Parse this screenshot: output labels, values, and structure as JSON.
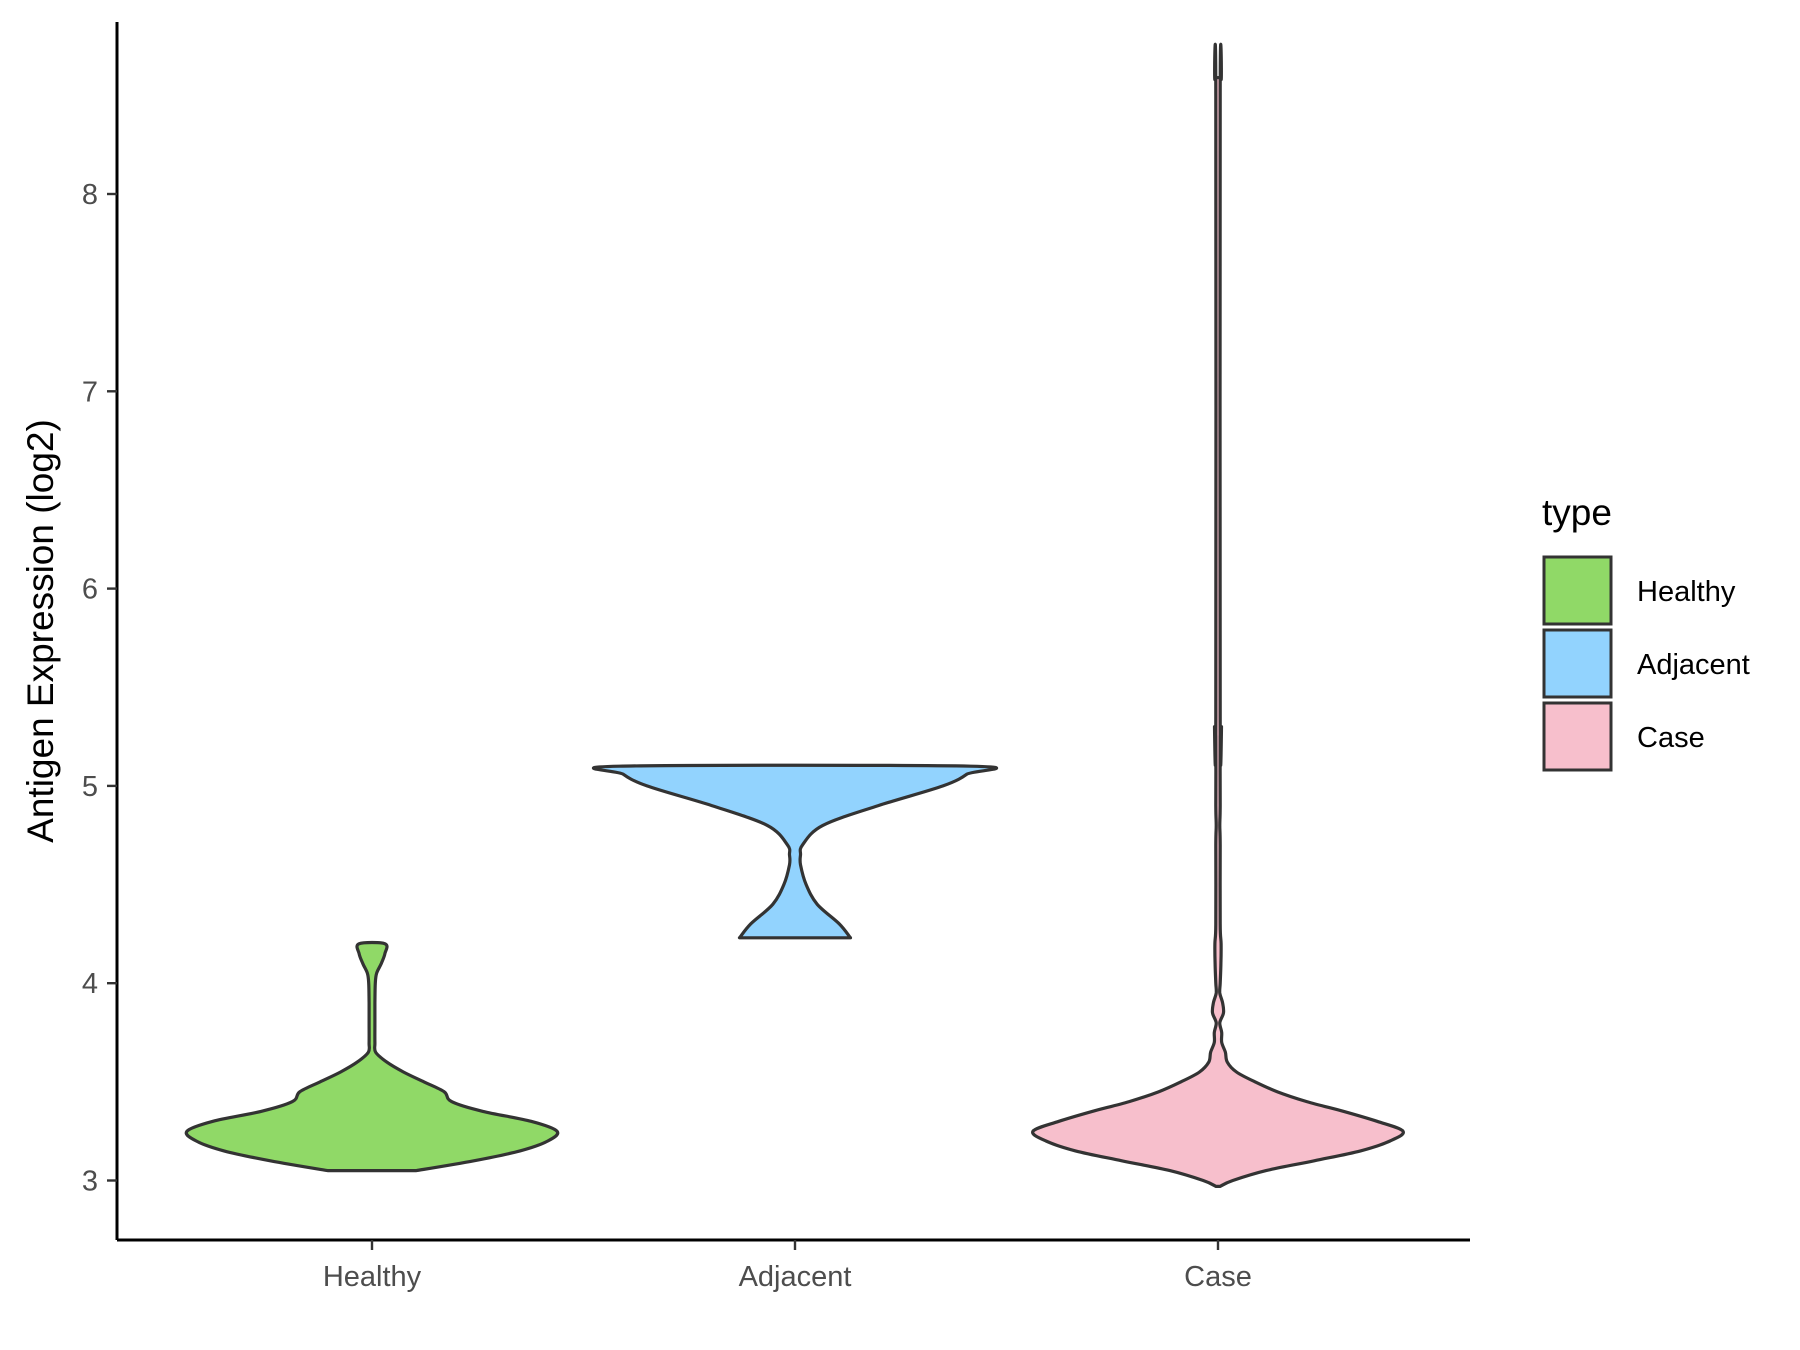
{
  "chart_data": {
    "type": "violin",
    "title": "",
    "xlabel": "",
    "ylabel": "Antigen Expression (log2)",
    "ylim": [
      2.7,
      8.85
    ],
    "yticks": [
      "3",
      "4",
      "5",
      "6",
      "7",
      "8"
    ],
    "categories": [
      "Healthy",
      "Adjacent",
      "Case"
    ],
    "legend": {
      "title": "type",
      "position": "right",
      "entries": [
        "Healthy",
        "Adjacent",
        "Case"
      ]
    },
    "grid": false,
    "series": [
      {
        "name": "Healthy",
        "color": "#90D967",
        "range": [
          3.05,
          4.2
        ],
        "density": [
          [
            3.05,
            0.24
          ],
          [
            3.1,
            0.55
          ],
          [
            3.15,
            0.8
          ],
          [
            3.2,
            0.95
          ],
          [
            3.25,
            1.0
          ],
          [
            3.3,
            0.86
          ],
          [
            3.35,
            0.6
          ],
          [
            3.4,
            0.43
          ],
          [
            3.45,
            0.39
          ],
          [
            3.5,
            0.28
          ],
          [
            3.55,
            0.17
          ],
          [
            3.6,
            0.08
          ],
          [
            3.65,
            0.02
          ],
          [
            3.7,
            0.005
          ],
          [
            3.8,
            0.005
          ],
          [
            3.9,
            0.005
          ],
          [
            4.0,
            0.007
          ],
          [
            4.05,
            0.025
          ],
          [
            4.1,
            0.05
          ],
          [
            4.15,
            0.07
          ],
          [
            4.2,
            0.07
          ]
        ]
      },
      {
        "name": "Adjacent",
        "color": "#92D3FE",
        "range": [
          4.23,
          5.1
        ],
        "density": [
          [
            4.23,
            0.3
          ],
          [
            4.3,
            0.24
          ],
          [
            4.4,
            0.12
          ],
          [
            4.5,
            0.06
          ],
          [
            4.6,
            0.03
          ],
          [
            4.65,
            0.03
          ],
          [
            4.7,
            0.04
          ],
          [
            4.8,
            0.15
          ],
          [
            4.9,
            0.45
          ],
          [
            5.0,
            0.8
          ],
          [
            5.06,
            0.93
          ],
          [
            5.1,
            0.95
          ]
        ]
      },
      {
        "name": "Case",
        "color": "#F7BFCC",
        "range": [
          2.97,
          8.58
        ],
        "density": [
          [
            2.97,
            0.0
          ],
          [
            3.0,
            0.08
          ],
          [
            3.05,
            0.26
          ],
          [
            3.1,
            0.52
          ],
          [
            3.15,
            0.77
          ],
          [
            3.2,
            0.93
          ],
          [
            3.25,
            1.0
          ],
          [
            3.3,
            0.86
          ],
          [
            3.35,
            0.68
          ],
          [
            3.4,
            0.48
          ],
          [
            3.45,
            0.32
          ],
          [
            3.5,
            0.2
          ],
          [
            3.55,
            0.1
          ],
          [
            3.6,
            0.05
          ],
          [
            3.65,
            0.04
          ],
          [
            3.7,
            0.02
          ],
          [
            3.75,
            0.02
          ],
          [
            3.8,
            0.01
          ],
          [
            3.85,
            0.03
          ],
          [
            3.9,
            0.025
          ],
          [
            3.95,
            0.01
          ],
          [
            4.0,
            0.012
          ],
          [
            4.1,
            0.005
          ],
          [
            4.2,
            0.006
          ],
          [
            4.3,
            0.001
          ],
          [
            4.7,
            0.001
          ],
          [
            4.8,
            0.01
          ],
          [
            4.9,
            0.001
          ],
          [
            5.25,
            0.001
          ],
          [
            5.3,
            0.008
          ],
          [
            5.35,
            0.001
          ],
          [
            8.5,
            0.001
          ],
          [
            8.58,
            0.006
          ]
        ]
      }
    ]
  }
}
